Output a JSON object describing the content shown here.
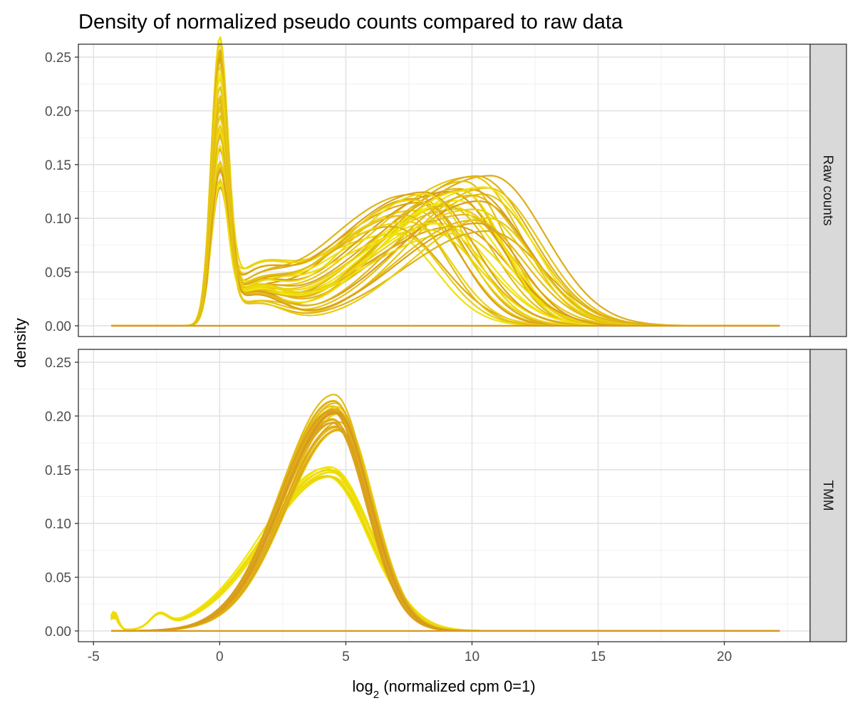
{
  "chart_data": {
    "type": "line",
    "title": "Density of normalized pseudo counts compared to raw data",
    "xlabel": {
      "prefix": "log",
      "subscript": "2",
      "rest": " (normalized cpm  0=1)"
    },
    "ylabel": "density",
    "xlim": [
      -5.6,
      23.4
    ],
    "ylim": [
      -0.01,
      0.262
    ],
    "x_ticks": [
      -5,
      0,
      5,
      10,
      15,
      20
    ],
    "x_tick_labels": [
      "-5",
      "0",
      "5",
      "10",
      "15",
      "20"
    ],
    "y_ticks": [
      0,
      0.05,
      0.1,
      0.15,
      0.2,
      0.25
    ],
    "y_tick_labels": [
      "0.00",
      "0.05",
      "0.10",
      "0.15",
      "0.20",
      "0.25"
    ],
    "x_range_curves": [
      -4.3,
      22.2
    ],
    "grid": true,
    "legend": "none",
    "color_range": [
      "#f2ea08",
      "#d89a1e"
    ],
    "panels": [
      {
        "strip_label": "Raw counts",
        "samples": 40,
        "description": "bimodal: spike at 0, broad mode 6.8–10.8",
        "spike_peak_range": [
          0.103,
          0.252
        ],
        "spike_center": 0,
        "broad_peak_range": [
          0.085,
          0.14
        ],
        "broad_mode_range": [
          6.8,
          10.8
        ],
        "trough_range": [
          0.033,
          0.055
        ]
      },
      {
        "strip_label": "TMM",
        "groups": [
          {
            "samples": 28,
            "peak_range": [
              0.186,
              0.22
            ],
            "mode": 4.6
          },
          {
            "samples": 12,
            "peak_range": [
              0.142,
              0.154
            ],
            "mode": 4.3,
            "left_tail_bump_x": -4.2,
            "left_tail_bump_y": 0.018
          }
        ]
      }
    ]
  }
}
